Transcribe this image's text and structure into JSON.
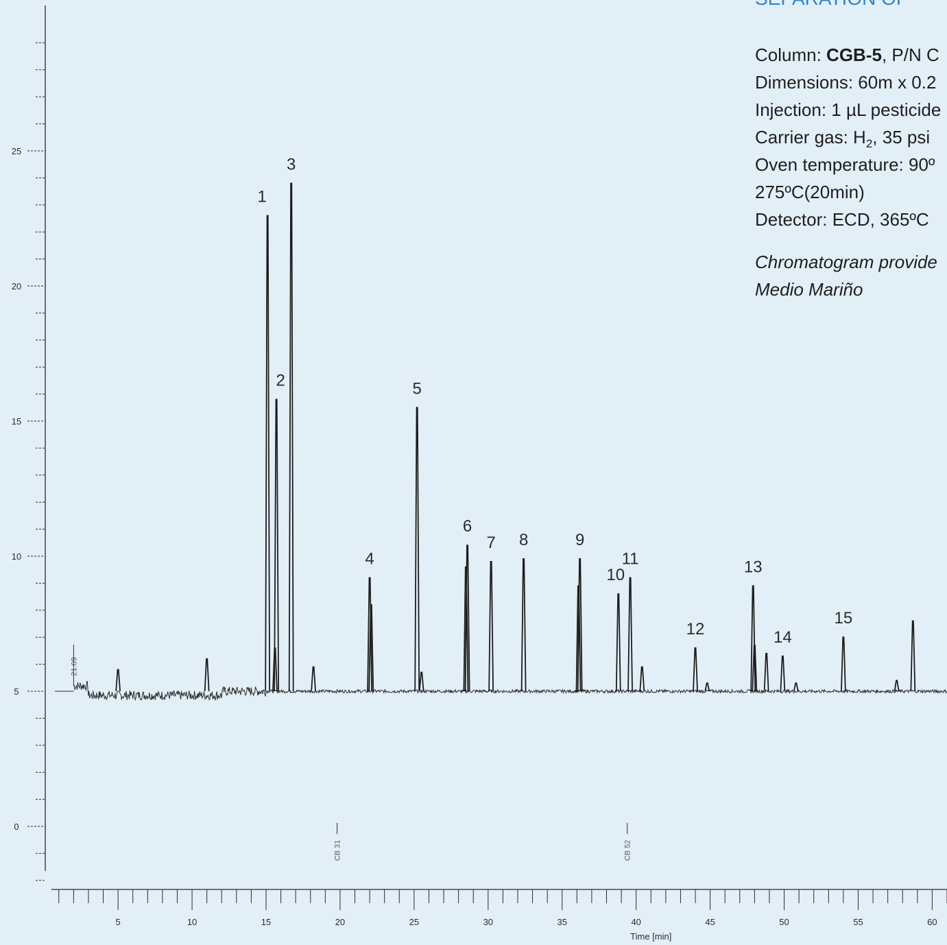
{
  "info": {
    "title": "SEPARATION OF",
    "column_label": "Column: ",
    "column_name": "CGB-5",
    "column_rest": ", P/N C",
    "dimensions": "Dimensions: 60m x 0.2",
    "injection": "Injection: 1 µL pesticide",
    "carrier_prefix": "Carrier gas: H",
    "carrier_sub": "2",
    "carrier_rest": ", 35 psi",
    "oven": "Oven temperature: 90º",
    "oven_cont": "275ºC(20min)",
    "detector": "Detector: ECD, 365ºC",
    "credit_1": "Chromatogram provide",
    "credit_2": "Medio Mariño"
  },
  "chart_data": {
    "type": "line",
    "xlabel": "Time [min]",
    "ylabel": "",
    "xlim": [
      0.5,
      61
    ],
    "ylim": [
      -2.4,
      30
    ],
    "x_ticks": [
      5,
      10,
      15,
      20,
      25,
      30,
      35,
      40,
      45,
      50,
      55,
      60
    ],
    "x_tick_labels": [
      "5",
      "10",
      "15",
      "20",
      "25",
      "30",
      "35",
      "40",
      "45",
      "50",
      "55",
      "60"
    ],
    "y_ticks": [
      0,
      5,
      10,
      15,
      20,
      25
    ],
    "y_tick_labels": [
      "0",
      "5",
      "10",
      "15",
      "20",
      "25"
    ],
    "grid": false,
    "baseline": 5.0,
    "series": [
      {
        "peaks": [
          {
            "label": "1",
            "x": 15.1,
            "y": 22.6
          },
          {
            "label": "2",
            "x": 15.7,
            "y": 15.8
          },
          {
            "label": "3",
            "x": 16.7,
            "y": 23.8
          },
          {
            "label": "4",
            "x": 22.0,
            "y": 9.2
          },
          {
            "label": "5",
            "x": 25.2,
            "y": 15.5
          },
          {
            "label": "6",
            "x": 28.6,
            "y": 10.4
          },
          {
            "label": "7",
            "x": 30.2,
            "y": 9.8
          },
          {
            "label": "8",
            "x": 32.4,
            "y": 9.9
          },
          {
            "label": "9",
            "x": 36.2,
            "y": 9.9
          },
          {
            "label": "10",
            "x": 38.8,
            "y": 8.6
          },
          {
            "label": "11",
            "x": 39.6,
            "y": 9.2
          },
          {
            "label": "12",
            "x": 44.0,
            "y": 6.6
          },
          {
            "label": "13",
            "x": 47.9,
            "y": 8.9
          },
          {
            "label": "14",
            "x": 49.9,
            "y": 6.3
          },
          {
            "label": "15",
            "x": 54.0,
            "y": 7.0
          }
        ],
        "minor_peaks": [
          {
            "x": 5.0,
            "y": 5.8
          },
          {
            "x": 11.0,
            "y": 6.2
          },
          {
            "x": 15.6,
            "y": 6.6
          },
          {
            "x": 18.2,
            "y": 5.9
          },
          {
            "x": 22.1,
            "y": 8.2
          },
          {
            "x": 25.5,
            "y": 5.7
          },
          {
            "x": 28.5,
            "y": 9.6
          },
          {
            "x": 36.1,
            "y": 8.9
          },
          {
            "x": 40.4,
            "y": 5.9
          },
          {
            "x": 48.0,
            "y": 6.7
          },
          {
            "x": 48.8,
            "y": 6.4
          },
          {
            "x": 50.8,
            "y": 5.3
          },
          {
            "x": 44.8,
            "y": 5.3
          },
          {
            "x": 58.7,
            "y": 7.6
          },
          {
            "x": 57.6,
            "y": 5.4
          }
        ]
      }
    ],
    "annotations": [
      {
        "text": "CB 31",
        "x": 19.8
      },
      {
        "text": "CB 52",
        "x": 39.4
      },
      {
        "text": "21.09",
        "x": 2.0
      }
    ]
  }
}
